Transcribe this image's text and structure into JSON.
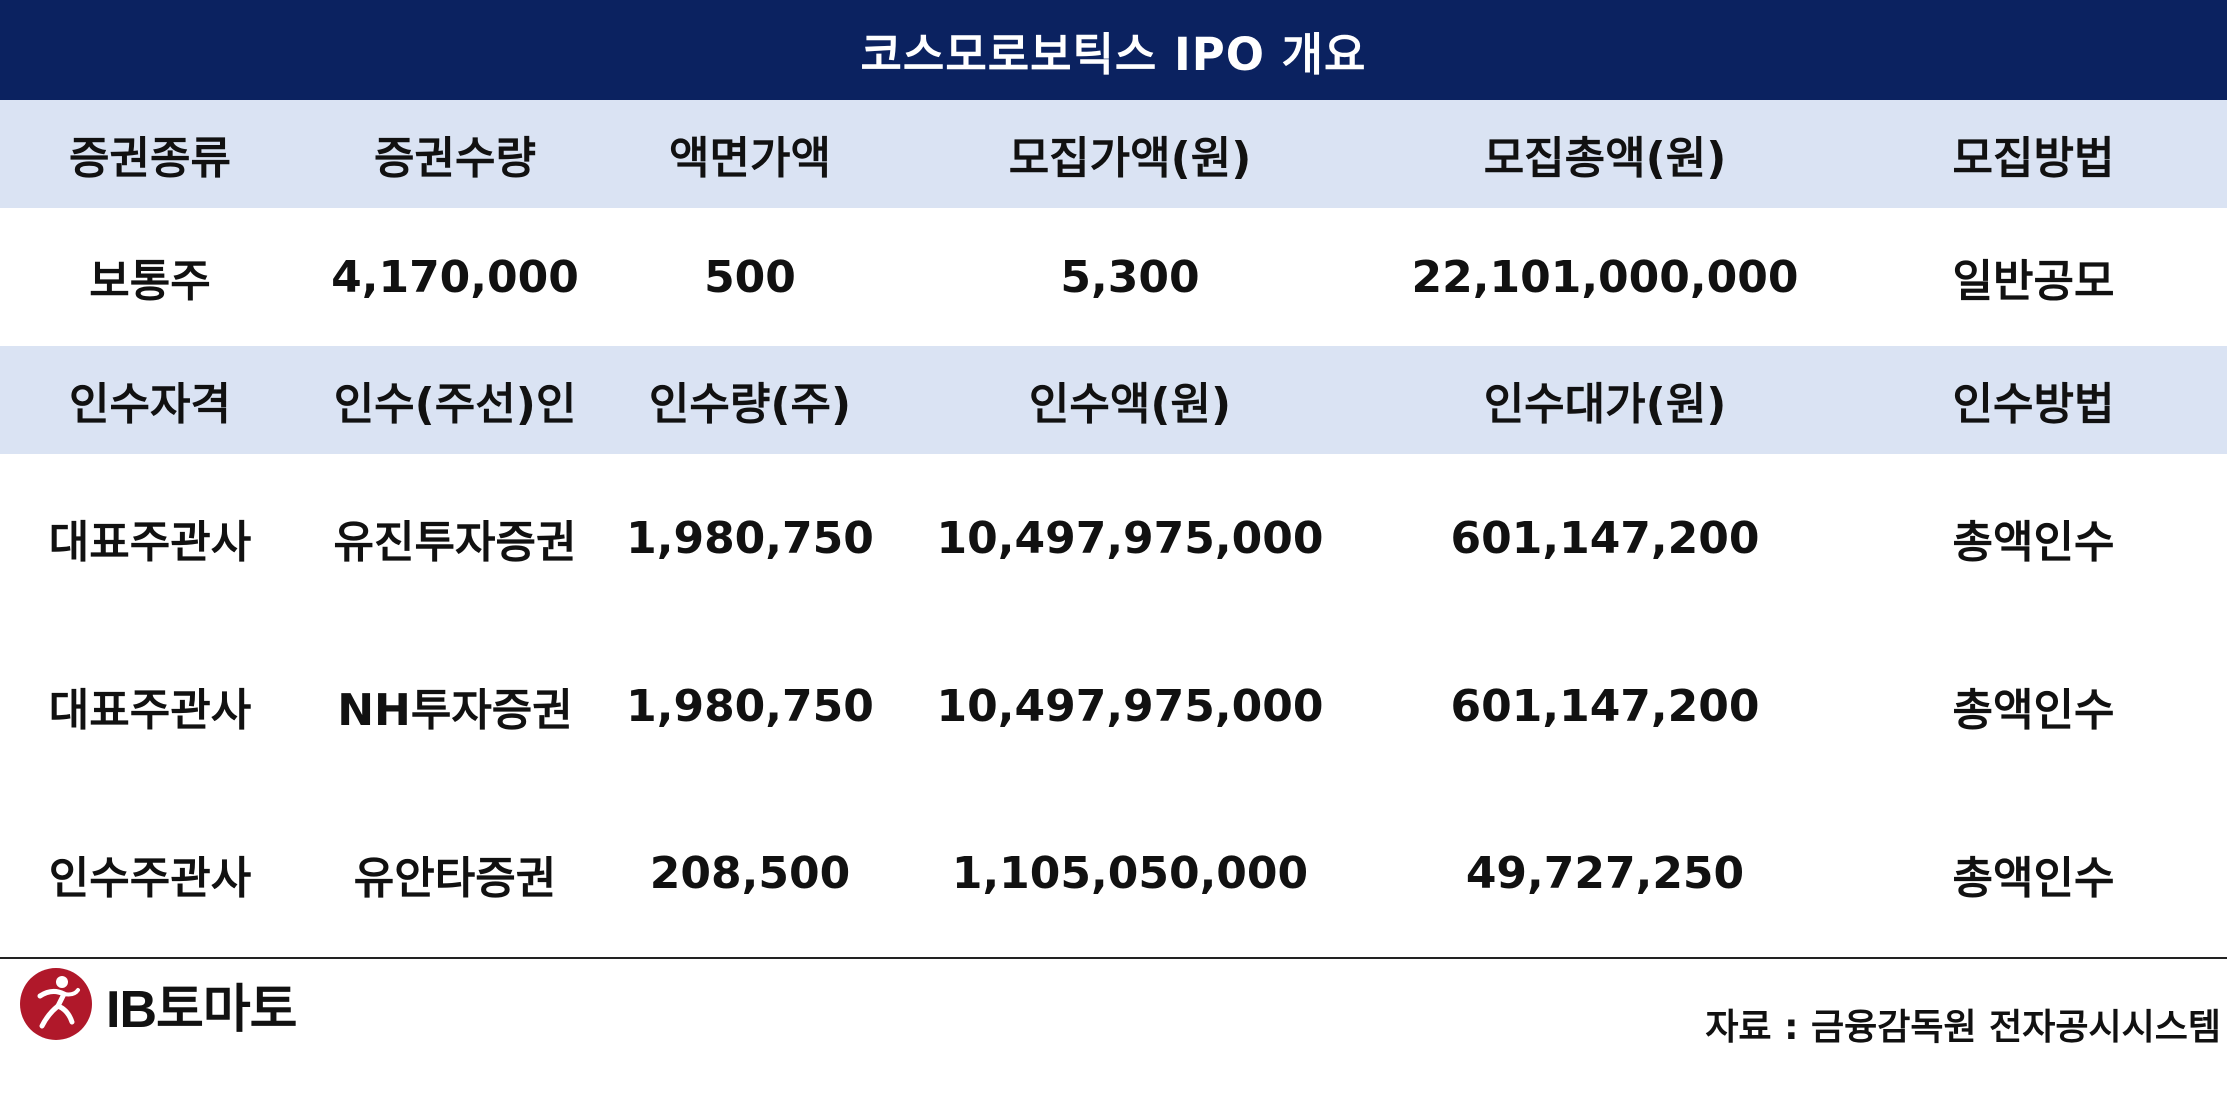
{
  "title": "코스모로보틱스 IPO 개요",
  "securities": {
    "headers": [
      "증권종류",
      "증권수량",
      "액면가액",
      "모집가액(원)",
      "모집총액(원)",
      "모집방법"
    ],
    "row": [
      "보통주",
      "4,170,000",
      "500",
      "5,300",
      "22,101,000,000",
      "일반공모"
    ]
  },
  "underwriters": {
    "headers": [
      "인수자격",
      "인수(주선)인",
      "인수량(주)",
      "인수액(원)",
      "인수대가(원)",
      "인수방법"
    ],
    "rows": [
      [
        "대표주관사",
        "유진투자증권",
        "1,980,750",
        "10,497,975,000",
        "601,147,200",
        "총액인수"
      ],
      [
        "대표주관사",
        "NH투자증권",
        "1,980,750",
        "10,497,975,000",
        "601,147,200",
        "총액인수"
      ],
      [
        "인수주관사",
        "유안타증권",
        "208,500",
        "1,105,050,000",
        "49,727,250",
        "총액인수"
      ]
    ]
  },
  "footer": {
    "logo_text": "IB토마토",
    "logo_icon": "runner-logo-icon",
    "source": "자료 :  금융감독원 전자공시시스템"
  },
  "colors": {
    "title_bg": "#0b2260",
    "header_bg": "#dae3f3",
    "logo_red": "#b0182a"
  }
}
